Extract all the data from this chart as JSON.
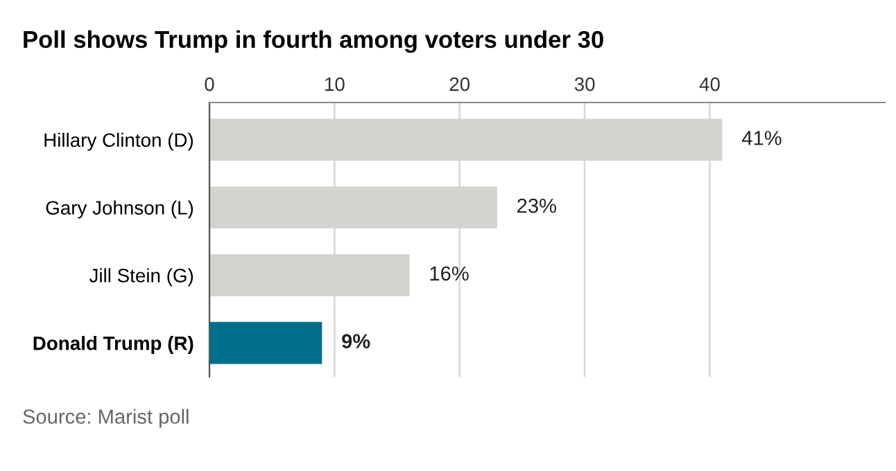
{
  "chart_data": {
    "type": "bar",
    "orientation": "horizontal",
    "title": "Poll shows Trump in fourth among voters under 30",
    "categories": [
      "Hillary Clinton (D)",
      "Gary Johnson (L)",
      "Jill Stein (G)",
      "Donald Trump (R)"
    ],
    "values": [
      41,
      23,
      16,
      9
    ],
    "colors": [
      "#d3d3cf",
      "#d3d3cf",
      "#d3d3cf",
      "#006f8e"
    ],
    "value_labels": [
      "41%",
      "23%",
      "16%",
      "9%"
    ],
    "xlim": [
      0,
      54
    ],
    "xticks": [
      0,
      10,
      20,
      30,
      40
    ],
    "grid": "x",
    "annotations": [
      "Source: Marist poll"
    ]
  }
}
